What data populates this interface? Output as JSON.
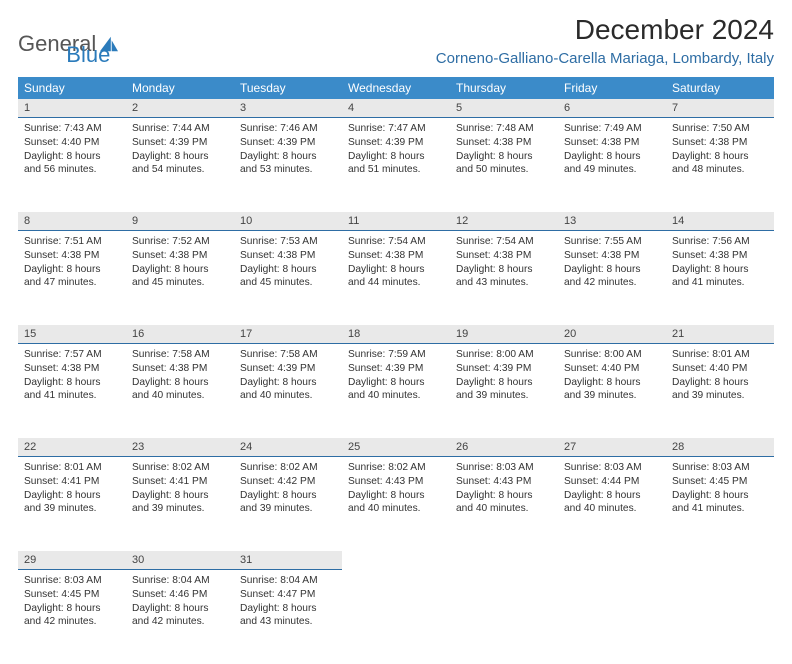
{
  "brand": {
    "part1": "General",
    "part2": "Blue"
  },
  "title": "December 2024",
  "location": "Corneno-Galliano-Carella Mariaga, Lombardy, Italy",
  "colors": {
    "header_bg": "#3b8bc9",
    "header_text": "#ffffff",
    "daynum_bg": "#e9e9e9",
    "daynum_border": "#2e6da4",
    "location_color": "#2e6da4",
    "logo_gray": "#565656",
    "logo_blue": "#2b7bbb"
  },
  "weekdays": [
    "Sunday",
    "Monday",
    "Tuesday",
    "Wednesday",
    "Thursday",
    "Friday",
    "Saturday"
  ],
  "weeks": [
    [
      {
        "n": "1",
        "sunrise": "Sunrise: 7:43 AM",
        "sunset": "Sunset: 4:40 PM",
        "day": "Daylight: 8 hours and 56 minutes."
      },
      {
        "n": "2",
        "sunrise": "Sunrise: 7:44 AM",
        "sunset": "Sunset: 4:39 PM",
        "day": "Daylight: 8 hours and 54 minutes."
      },
      {
        "n": "3",
        "sunrise": "Sunrise: 7:46 AM",
        "sunset": "Sunset: 4:39 PM",
        "day": "Daylight: 8 hours and 53 minutes."
      },
      {
        "n": "4",
        "sunrise": "Sunrise: 7:47 AM",
        "sunset": "Sunset: 4:39 PM",
        "day": "Daylight: 8 hours and 51 minutes."
      },
      {
        "n": "5",
        "sunrise": "Sunrise: 7:48 AM",
        "sunset": "Sunset: 4:38 PM",
        "day": "Daylight: 8 hours and 50 minutes."
      },
      {
        "n": "6",
        "sunrise": "Sunrise: 7:49 AM",
        "sunset": "Sunset: 4:38 PM",
        "day": "Daylight: 8 hours and 49 minutes."
      },
      {
        "n": "7",
        "sunrise": "Sunrise: 7:50 AM",
        "sunset": "Sunset: 4:38 PM",
        "day": "Daylight: 8 hours and 48 minutes."
      }
    ],
    [
      {
        "n": "8",
        "sunrise": "Sunrise: 7:51 AM",
        "sunset": "Sunset: 4:38 PM",
        "day": "Daylight: 8 hours and 47 minutes."
      },
      {
        "n": "9",
        "sunrise": "Sunrise: 7:52 AM",
        "sunset": "Sunset: 4:38 PM",
        "day": "Daylight: 8 hours and 45 minutes."
      },
      {
        "n": "10",
        "sunrise": "Sunrise: 7:53 AM",
        "sunset": "Sunset: 4:38 PM",
        "day": "Daylight: 8 hours and 45 minutes."
      },
      {
        "n": "11",
        "sunrise": "Sunrise: 7:54 AM",
        "sunset": "Sunset: 4:38 PM",
        "day": "Daylight: 8 hours and 44 minutes."
      },
      {
        "n": "12",
        "sunrise": "Sunrise: 7:54 AM",
        "sunset": "Sunset: 4:38 PM",
        "day": "Daylight: 8 hours and 43 minutes."
      },
      {
        "n": "13",
        "sunrise": "Sunrise: 7:55 AM",
        "sunset": "Sunset: 4:38 PM",
        "day": "Daylight: 8 hours and 42 minutes."
      },
      {
        "n": "14",
        "sunrise": "Sunrise: 7:56 AM",
        "sunset": "Sunset: 4:38 PM",
        "day": "Daylight: 8 hours and 41 minutes."
      }
    ],
    [
      {
        "n": "15",
        "sunrise": "Sunrise: 7:57 AM",
        "sunset": "Sunset: 4:38 PM",
        "day": "Daylight: 8 hours and 41 minutes."
      },
      {
        "n": "16",
        "sunrise": "Sunrise: 7:58 AM",
        "sunset": "Sunset: 4:38 PM",
        "day": "Daylight: 8 hours and 40 minutes."
      },
      {
        "n": "17",
        "sunrise": "Sunrise: 7:58 AM",
        "sunset": "Sunset: 4:39 PM",
        "day": "Daylight: 8 hours and 40 minutes."
      },
      {
        "n": "18",
        "sunrise": "Sunrise: 7:59 AM",
        "sunset": "Sunset: 4:39 PM",
        "day": "Daylight: 8 hours and 40 minutes."
      },
      {
        "n": "19",
        "sunrise": "Sunrise: 8:00 AM",
        "sunset": "Sunset: 4:39 PM",
        "day": "Daylight: 8 hours and 39 minutes."
      },
      {
        "n": "20",
        "sunrise": "Sunrise: 8:00 AM",
        "sunset": "Sunset: 4:40 PM",
        "day": "Daylight: 8 hours and 39 minutes."
      },
      {
        "n": "21",
        "sunrise": "Sunrise: 8:01 AM",
        "sunset": "Sunset: 4:40 PM",
        "day": "Daylight: 8 hours and 39 minutes."
      }
    ],
    [
      {
        "n": "22",
        "sunrise": "Sunrise: 8:01 AM",
        "sunset": "Sunset: 4:41 PM",
        "day": "Daylight: 8 hours and 39 minutes."
      },
      {
        "n": "23",
        "sunrise": "Sunrise: 8:02 AM",
        "sunset": "Sunset: 4:41 PM",
        "day": "Daylight: 8 hours and 39 minutes."
      },
      {
        "n": "24",
        "sunrise": "Sunrise: 8:02 AM",
        "sunset": "Sunset: 4:42 PM",
        "day": "Daylight: 8 hours and 39 minutes."
      },
      {
        "n": "25",
        "sunrise": "Sunrise: 8:02 AM",
        "sunset": "Sunset: 4:43 PM",
        "day": "Daylight: 8 hours and 40 minutes."
      },
      {
        "n": "26",
        "sunrise": "Sunrise: 8:03 AM",
        "sunset": "Sunset: 4:43 PM",
        "day": "Daylight: 8 hours and 40 minutes."
      },
      {
        "n": "27",
        "sunrise": "Sunrise: 8:03 AM",
        "sunset": "Sunset: 4:44 PM",
        "day": "Daylight: 8 hours and 40 minutes."
      },
      {
        "n": "28",
        "sunrise": "Sunrise: 8:03 AM",
        "sunset": "Sunset: 4:45 PM",
        "day": "Daylight: 8 hours and 41 minutes."
      }
    ],
    [
      {
        "n": "29",
        "sunrise": "Sunrise: 8:03 AM",
        "sunset": "Sunset: 4:45 PM",
        "day": "Daylight: 8 hours and 42 minutes."
      },
      {
        "n": "30",
        "sunrise": "Sunrise: 8:04 AM",
        "sunset": "Sunset: 4:46 PM",
        "day": "Daylight: 8 hours and 42 minutes."
      },
      {
        "n": "31",
        "sunrise": "Sunrise: 8:04 AM",
        "sunset": "Sunset: 4:47 PM",
        "day": "Daylight: 8 hours and 43 minutes."
      },
      null,
      null,
      null,
      null
    ]
  ]
}
